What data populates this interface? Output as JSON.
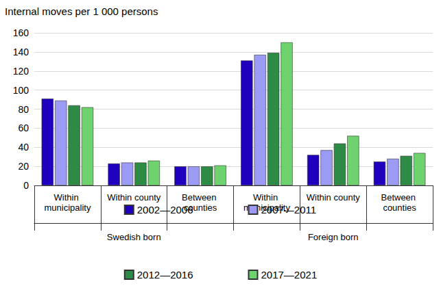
{
  "chart_data": {
    "type": "bar",
    "title": "Internal moves per 1 000 persons",
    "categories": [
      "Within municipality",
      "Within county",
      "Between counties",
      "Within municipality",
      "Within county",
      "Between counties"
    ],
    "category_groups": [
      "Swedish born",
      "Foreign born"
    ],
    "series": [
      {
        "name": "2002—2006",
        "color": "#1E00BE",
        "values": [
          91,
          23,
          20,
          131,
          32,
          25
        ]
      },
      {
        "name": "2007—2011",
        "color": "#9B9BF5",
        "values": [
          89,
          24,
          20,
          137,
          37,
          28
        ]
      },
      {
        "name": "2012—2016",
        "color": "#2E8B45",
        "values": [
          84,
          24,
          20,
          139,
          44,
          31
        ]
      },
      {
        "name": "2017—2021",
        "color": "#6ED36E",
        "values": [
          82,
          26,
          21,
          150,
          52,
          34
        ]
      }
    ],
    "ylim": [
      0,
      160
    ],
    "yticks": [
      0,
      20,
      40,
      60,
      80,
      100,
      120,
      140,
      160
    ],
    "grid": true,
    "legend": "bottom"
  }
}
